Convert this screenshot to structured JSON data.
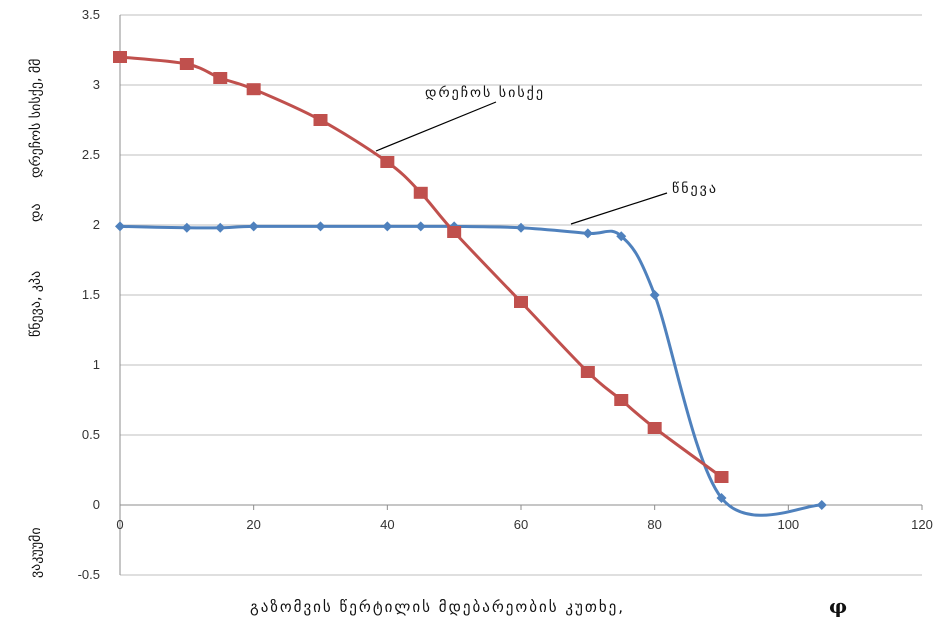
{
  "chart_data": {
    "type": "line",
    "xlabel": "გაზომვის წერტილის მდებარეობის კუთხე,",
    "xlabel_symbol": "φ",
    "ylabel_top": "წნევა, კპა",
    "ylabel_connector": "და",
    "ylabel_bottom": "დრეჩოს სისქე, მმ",
    "ylabel_side": "ვაკუუმი",
    "xlim": [
      0,
      120
    ],
    "ylim": [
      -0.5,
      3.5
    ],
    "x_ticks": [
      "0",
      "20",
      "40",
      "60",
      "80",
      "100",
      "120"
    ],
    "y_ticks": [
      "-0.5",
      "0",
      "0.5",
      "1",
      "1.5",
      "2",
      "2.5",
      "3",
      "3.5"
    ],
    "grid": "horizontal",
    "series": [
      {
        "name": "წნევა",
        "color": "#4f81bd",
        "marker": "diamond",
        "x": [
          0,
          10,
          15,
          20,
          30,
          40,
          45,
          50,
          60,
          70,
          75,
          80,
          90,
          105
        ],
        "y": [
          1.99,
          1.98,
          1.98,
          1.99,
          1.99,
          1.99,
          1.99,
          1.99,
          1.98,
          1.94,
          1.92,
          1.5,
          0.05,
          0.0
        ]
      },
      {
        "name": "დრეჩოს სისქე",
        "color": "#c0504d",
        "marker": "square",
        "x": [
          0,
          10,
          15,
          20,
          30,
          40,
          45,
          50,
          60,
          70,
          75,
          80,
          90
        ],
        "y": [
          3.2,
          3.15,
          3.05,
          2.97,
          2.75,
          2.45,
          2.23,
          1.95,
          1.45,
          0.95,
          0.75,
          0.55,
          0.2
        ]
      }
    ],
    "annotations": [
      {
        "text": "დრეჩოს სისქე",
        "series": 1
      },
      {
        "text": "წნევა",
        "series": 0
      }
    ]
  }
}
